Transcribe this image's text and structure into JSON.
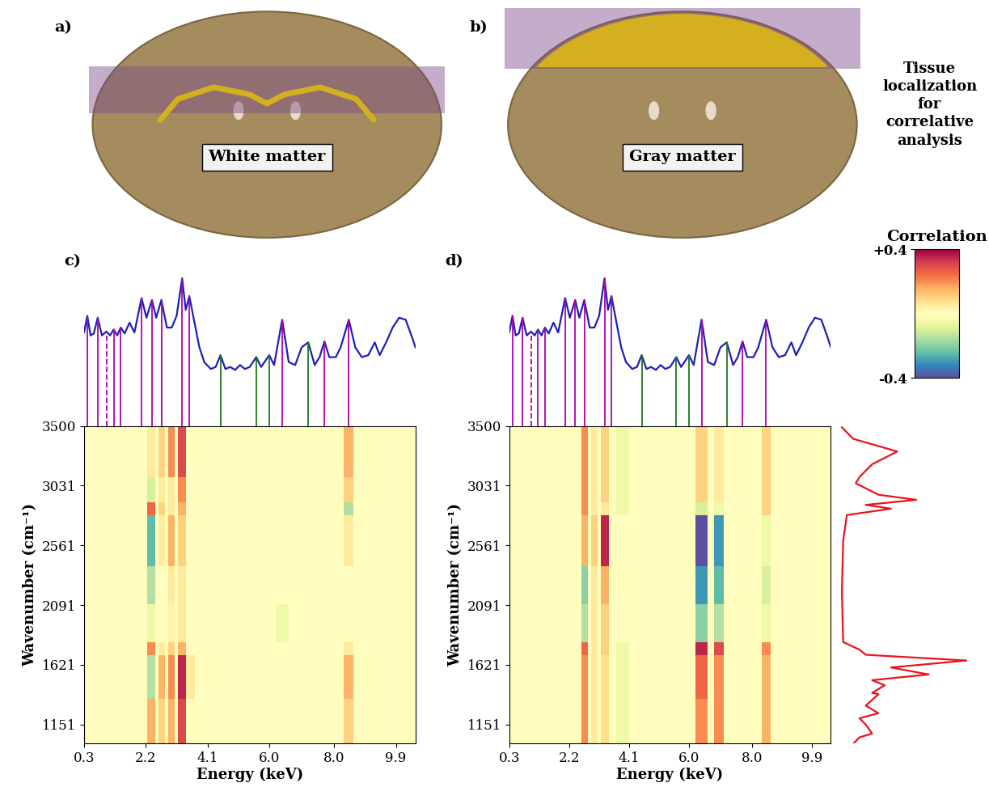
{
  "tissue_panels": [
    {
      "label": "a)",
      "region": "White matter"
    },
    {
      "label": "b)",
      "region": "Gray matter"
    }
  ],
  "side_title": "Tissue\nlocalization\nfor\ncorrelative\nanalysis",
  "colorbar": {
    "title": "Correlation",
    "range": [
      -0.4,
      0.4
    ],
    "ticks": [
      {
        "value": 0.4,
        "label": "+0.4"
      },
      {
        "value": -0.4,
        "label": "-0.4"
      }
    ]
  },
  "xrf_spectrum": {
    "color": "#1f1fb4",
    "intensity_lim": [
      -0.5,
      1.05
    ],
    "energy": [
      0.3,
      0.4,
      0.5,
      0.6,
      0.72,
      0.85,
      0.99,
      1.1,
      1.21,
      1.32,
      1.43,
      1.55,
      1.7,
      1.85,
      2.07,
      2.22,
      2.39,
      2.52,
      2.68,
      2.85,
      3.0,
      3.15,
      3.32,
      3.43,
      3.54,
      3.7,
      3.85,
      4.0,
      4.2,
      4.35,
      4.5,
      4.65,
      4.8,
      4.95,
      5.1,
      5.25,
      5.4,
      5.6,
      5.75,
      6.0,
      6.15,
      6.4,
      6.6,
      6.8,
      7.0,
      7.2,
      7.4,
      7.55,
      7.7,
      7.85,
      8.05,
      8.2,
      8.45,
      8.65,
      8.85,
      9.05,
      9.25,
      9.4,
      9.6,
      9.8,
      10.0,
      10.2,
      10.4,
      10.5
    ],
    "intensity": [
      0.45,
      0.62,
      0.42,
      0.44,
      0.6,
      0.42,
      0.46,
      0.42,
      0.48,
      0.42,
      0.5,
      0.44,
      0.55,
      0.45,
      0.8,
      0.6,
      0.78,
      0.6,
      0.78,
      0.5,
      0.5,
      0.62,
      1.0,
      0.68,
      0.82,
      0.55,
      0.3,
      0.15,
      0.08,
      0.1,
      0.22,
      0.08,
      0.1,
      0.07,
      0.12,
      0.08,
      0.1,
      0.2,
      0.1,
      0.22,
      0.12,
      0.58,
      0.15,
      0.12,
      0.3,
      0.35,
      0.12,
      0.2,
      0.36,
      0.2,
      0.2,
      0.3,
      0.58,
      0.3,
      0.2,
      0.22,
      0.35,
      0.22,
      0.35,
      0.5,
      0.6,
      0.58,
      0.4,
      0.3
    ],
    "peak_lines": [
      {
        "energy": 0.4,
        "color": "#b000b0",
        "line_style": "solid"
      },
      {
        "energy": 0.72,
        "color": "#b000b0",
        "line_style": "solid"
      },
      {
        "energy": 0.99,
        "color": "#b000b0",
        "line_style": "dashed"
      },
      {
        "energy": 1.21,
        "color": "#b000b0",
        "line_style": "solid"
      },
      {
        "energy": 1.43,
        "color": "#b000b0",
        "line_style": "solid"
      },
      {
        "energy": 2.07,
        "color": "#b000b0",
        "line_style": "solid"
      },
      {
        "energy": 2.39,
        "color": "#b000b0",
        "line_style": "solid"
      },
      {
        "energy": 2.68,
        "color": "#b000b0",
        "line_style": "solid"
      },
      {
        "energy": 3.32,
        "color": "#b000b0",
        "line_style": "solid"
      },
      {
        "energy": 3.54,
        "color": "#b000b0",
        "line_style": "solid"
      },
      {
        "energy": 4.5,
        "color": "#1a7a1a",
        "line_style": "solid"
      },
      {
        "energy": 5.6,
        "color": "#1a7a1a",
        "line_style": "solid"
      },
      {
        "energy": 6.0,
        "color": "#1a7a1a",
        "line_style": "solid"
      },
      {
        "energy": 6.4,
        "color": "#b000b0",
        "line_style": "solid"
      },
      {
        "energy": 7.2,
        "color": "#1a7a1a",
        "line_style": "solid"
      },
      {
        "energy": 7.7,
        "color": "#b000b0",
        "line_style": "solid"
      },
      {
        "energy": 8.45,
        "color": "#b000b0",
        "line_style": "solid"
      }
    ]
  },
  "ir_spectrum": {
    "color": "#e8141e",
    "intensity_lim": [
      0,
      1.1
    ],
    "wavenumber": [
      3500,
      3400,
      3300,
      3200,
      3100,
      3050,
      2960,
      2920,
      2880,
      2850,
      2800,
      2600,
      2200,
      1800,
      1740,
      1700,
      1655,
      1600,
      1545,
      1500,
      1460,
      1400,
      1390,
      1300,
      1240,
      1200,
      1150,
      1080,
      1050,
      1000
    ],
    "intensity": [
      0.0,
      0.1,
      0.45,
      0.25,
      0.15,
      0.12,
      0.3,
      0.6,
      0.2,
      0.4,
      0.05,
      0.02,
      0.01,
      0.02,
      0.15,
      0.2,
      1.0,
      0.4,
      0.7,
      0.25,
      0.35,
      0.25,
      0.3,
      0.2,
      0.3,
      0.15,
      0.2,
      0.25,
      0.15,
      0.1
    ]
  },
  "chart_data": [
    {
      "type": "heatmap",
      "label": "c)",
      "xlabel": "Energy (keV)",
      "ylabel": "Wavenumber (cm⁻¹)",
      "xlim": [
        0.3,
        10.5
      ],
      "ylim": [
        1000,
        3500
      ],
      "xticks": [
        0.3,
        2.2,
        4.1,
        6.0,
        8.0,
        9.9
      ],
      "yticks": [
        1151,
        1621,
        2091,
        2561,
        3031,
        3500
      ],
      "energy_edges": [
        0.3,
        2.25,
        2.5,
        2.6,
        2.8,
        2.9,
        3.1,
        3.2,
        3.45,
        3.7,
        4.1,
        6.2,
        6.6,
        6.8,
        7.1,
        8.3,
        8.6,
        10.5
      ],
      "wavenumber_edges": [
        1000,
        1350,
        1700,
        1800,
        2100,
        2400,
        2800,
        2900,
        3100,
        3500
      ],
      "cells": [
        [
          0,
          0.15,
          0,
          0.1,
          0,
          0.15,
          0,
          0.3,
          0,
          0,
          0,
          0,
          0,
          0,
          0,
          0.1,
          0
        ],
        [
          0,
          -0.15,
          0,
          0.15,
          0,
          0.2,
          0,
          0.35,
          0.05,
          0,
          0,
          0,
          0,
          0,
          0,
          0.15,
          0
        ],
        [
          0,
          0.2,
          0,
          0.05,
          0,
          0.1,
          0,
          0.15,
          0,
          0,
          0,
          0,
          0,
          0,
          0,
          0.05,
          0
        ],
        [
          0,
          -0.05,
          0,
          0,
          0,
          0.03,
          0,
          0.05,
          0,
          0,
          0,
          -0.05,
          0,
          0,
          0,
          0,
          0
        ],
        [
          0,
          -0.15,
          0,
          0,
          0,
          0.05,
          0,
          0.05,
          0,
          0,
          0,
          0,
          0,
          0,
          0,
          0,
          0
        ],
        [
          0,
          -0.25,
          0,
          0.05,
          0,
          0.15,
          0,
          0.1,
          0,
          0,
          0,
          0,
          0,
          0,
          0,
          0.05,
          0
        ],
        [
          0,
          0.25,
          0,
          0.1,
          0,
          0.05,
          0,
          0.15,
          0,
          0,
          0,
          0,
          0,
          0,
          0,
          -0.15,
          0
        ],
        [
          0,
          -0.1,
          0,
          0.05,
          0,
          0.05,
          0,
          0.2,
          0,
          0,
          0,
          0,
          0,
          0,
          0,
          0.1,
          0
        ],
        [
          0,
          0.05,
          0,
          0.1,
          0,
          0.2,
          0,
          0.3,
          0,
          0,
          0,
          0,
          0,
          0,
          0,
          0.15,
          0
        ]
      ]
    },
    {
      "type": "heatmap",
      "label": "d)",
      "xlabel": "Energy (keV)",
      "ylabel": "Wavenumber (cm⁻¹)",
      "xlim": [
        0.3,
        10.5
      ],
      "ylim": [
        1000,
        3500
      ],
      "xticks": [
        0.3,
        2.2,
        4.1,
        6.0,
        8.0,
        9.9
      ],
      "yticks": [
        1151,
        1621,
        2091,
        2561,
        3031,
        3500
      ],
      "energy_edges": [
        0.3,
        2.25,
        2.5,
        2.6,
        2.8,
        2.9,
        3.1,
        3.2,
        3.45,
        3.7,
        4.1,
        6.2,
        6.6,
        6.8,
        7.1,
        8.3,
        8.6,
        10.5
      ],
      "wavenumber_edges": [
        1000,
        1350,
        1700,
        1800,
        2100,
        2400,
        2800,
        2900,
        3100,
        3500
      ],
      "cells": [
        [
          0,
          0,
          0,
          0.2,
          0,
          0.05,
          0,
          0.08,
          0,
          -0.05,
          0,
          0.2,
          0,
          0.2,
          0,
          0.15,
          0
        ],
        [
          0,
          0,
          0,
          0.2,
          0,
          0.05,
          0,
          0.08,
          0,
          -0.05,
          0,
          0.25,
          0,
          0.2,
          0,
          0.15,
          0
        ],
        [
          0,
          0,
          0,
          0.25,
          0,
          0.05,
          0,
          0.1,
          0,
          -0.05,
          0,
          0.35,
          0,
          0.3,
          0,
          0.2,
          0
        ],
        [
          0,
          0,
          0,
          -0.15,
          0,
          0.05,
          0,
          0.1,
          0,
          0,
          0,
          -0.2,
          0,
          -0.15,
          0,
          -0.05,
          0
        ],
        [
          0,
          0,
          0,
          -0.2,
          0,
          0.05,
          0,
          0.15,
          0,
          0,
          0,
          -0.3,
          0,
          -0.25,
          0,
          -0.1,
          0
        ],
        [
          0,
          0,
          0,
          0.15,
          0,
          0.1,
          0,
          0.35,
          0,
          0,
          0,
          -0.4,
          0,
          -0.3,
          0,
          -0.05,
          0
        ],
        [
          0,
          0,
          0,
          0.2,
          0,
          0.05,
          0,
          0.05,
          0,
          -0.05,
          0,
          -0.1,
          0,
          -0.05,
          0,
          0.1,
          0
        ],
        [
          0,
          0,
          0,
          0.2,
          0,
          0.05,
          0,
          0.1,
          0,
          -0.05,
          0,
          0.1,
          0,
          0.05,
          0,
          0.1,
          0
        ],
        [
          0,
          0,
          0,
          0.2,
          0,
          0.05,
          0,
          0.1,
          0,
          -0.05,
          0,
          0.1,
          0,
          0.05,
          0,
          0.1,
          0
        ]
      ]
    }
  ]
}
